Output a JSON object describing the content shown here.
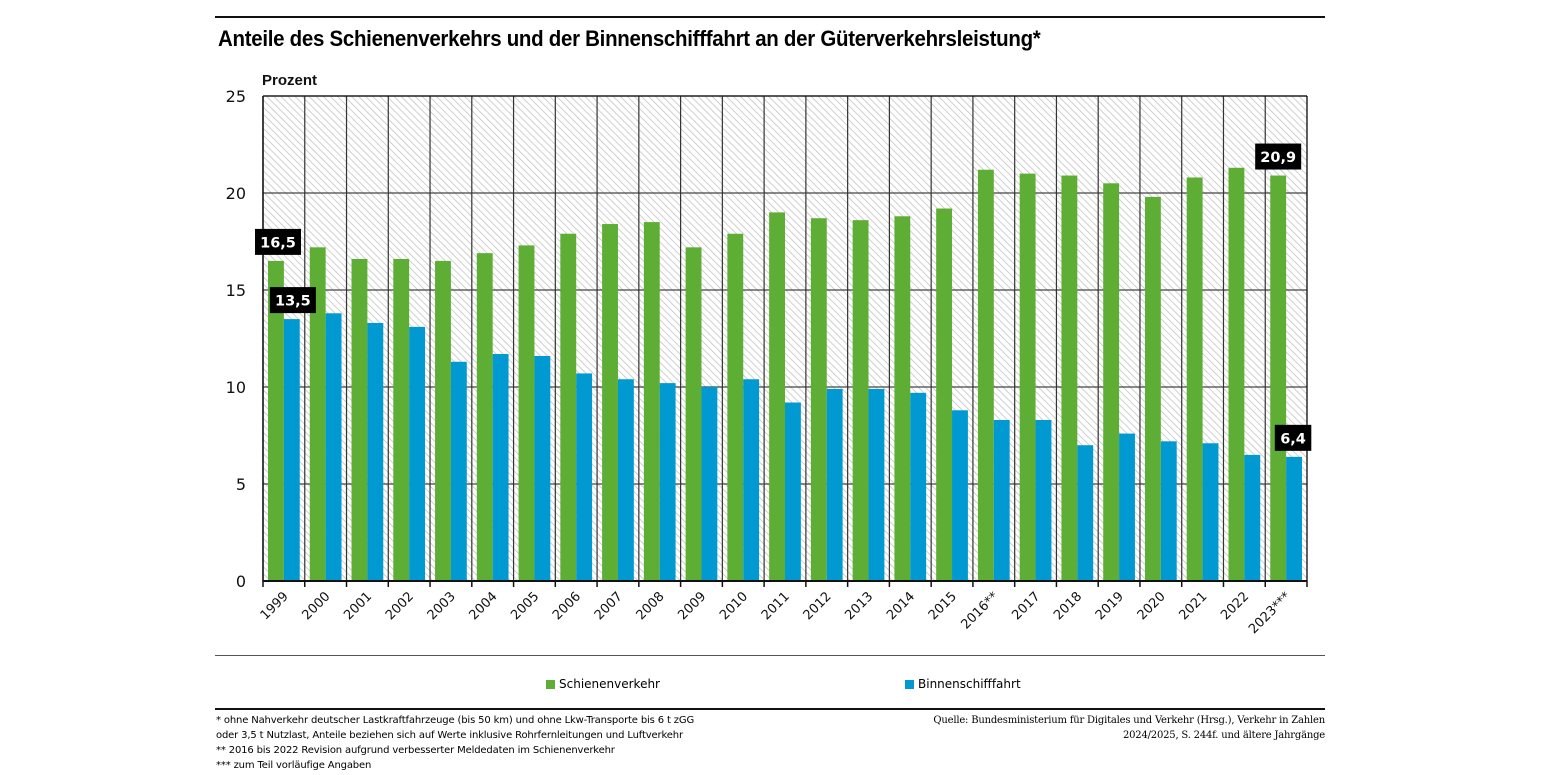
{
  "title": "Anteile des Schienenverkehrs und der Binnenschifffahrt an der Güterverkehrsleistung*",
  "chart_data": {
    "type": "bar",
    "title": "Anteile des Schienenverkehrs und der Binnenschifffahrt an der Güterverkehrsleistung*",
    "ylabel": "Prozent",
    "xlabel": "",
    "ylim": [
      0,
      25
    ],
    "yticks": [
      0,
      5,
      10,
      15,
      20,
      25
    ],
    "grid": true,
    "legend_position": "bottom",
    "categories": [
      "1999",
      "2000",
      "2001",
      "2002",
      "2003",
      "2004",
      "2005",
      "2006",
      "2007",
      "2008",
      "2009",
      "2010",
      "2011",
      "2012",
      "2013",
      "2014",
      "2015",
      "2016**",
      "2017",
      "2018",
      "2019",
      "2020",
      "2021",
      "2022",
      "2023***"
    ],
    "series": [
      {
        "name": "Schienenverkehr",
        "color": "#5ead35",
        "values": [
          16.5,
          17.2,
          16.6,
          16.6,
          16.5,
          16.9,
          17.3,
          17.9,
          18.4,
          18.5,
          17.2,
          17.9,
          19.0,
          18.7,
          18.6,
          18.8,
          19.2,
          21.2,
          21.0,
          20.9,
          20.5,
          19.8,
          20.8,
          21.3,
          20.9
        ]
      },
      {
        "name": "Binnenschifffahrt",
        "color": "#0099d1",
        "values": [
          13.5,
          13.8,
          13.3,
          13.1,
          11.3,
          11.7,
          11.6,
          10.7,
          10.4,
          10.2,
          10.0,
          10.4,
          9.2,
          9.9,
          9.9,
          9.7,
          8.8,
          8.3,
          8.3,
          7.0,
          7.6,
          7.2,
          7.1,
          6.5,
          6.4
        ]
      }
    ],
    "annotations": [
      {
        "series": 0,
        "category": "1999",
        "text": "16,5"
      },
      {
        "series": 1,
        "category": "1999",
        "text": "13,5"
      },
      {
        "series": 0,
        "category": "2023***",
        "text": "20,9"
      },
      {
        "series": 1,
        "category": "2023***",
        "text": "6,4"
      }
    ]
  },
  "legend": {
    "items": [
      {
        "label": "Schienenverkehr",
        "color": "#5ead35"
      },
      {
        "label": "Binnenschifffahrt",
        "color": "#0099d1"
      }
    ]
  },
  "footnotes": [
    "* ohne Nahverkehr deutscher Lastkraftfahrzeuge (bis 50 km) und ohne Lkw-Transporte bis 6 t zGG",
    "oder 3,5 t Nutzlast, Anteile beziehen sich auf Werte inklusive Rohrfernleitungen und Luftverkehr",
    "** 2016 bis 2022 Revision aufgrund verbesserter Meldedaten im Schienenverkehr",
    "*** zum Teil vorläufige Angaben"
  ],
  "source": [
    "Quelle: Bundesministerium für Digitales und Verkehr (Hrsg.), Verkehr in Zahlen",
    "2024/2025, S. 244f. und ältere Jahrgänge"
  ]
}
